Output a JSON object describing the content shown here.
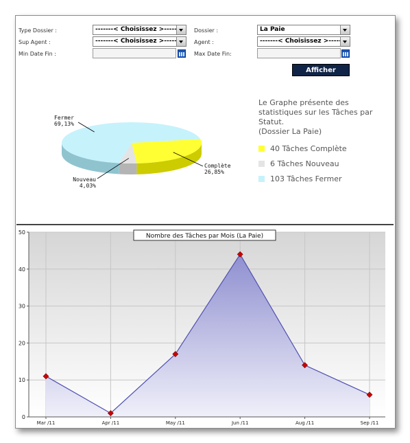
{
  "filters": {
    "type_dossier": {
      "label": "Type Dossier :",
      "value": "-------< Choisissez >-------"
    },
    "dossier": {
      "label": "Dossier :",
      "value": "La Paie"
    },
    "sup_agent": {
      "label": "Sup Agent :",
      "value": "-------< Choisissez >-------"
    },
    "agent": {
      "label": "Agent :",
      "value": "-------< Choisissez >-------"
    },
    "min_date": {
      "label": "Min Date Fin :",
      "value": ""
    },
    "max_date": {
      "label": "Max Date Fin:",
      "value": ""
    },
    "submit_label": "Afficher"
  },
  "pie_description": {
    "lines": [
      "Le Graphe présente des",
      "statistiques sur les Tâches par",
      "Statut.",
      "(Dossier La Paie)"
    ]
  },
  "colors": {
    "complete": "#ffff33",
    "nouveau": "#e4e4e4",
    "fermer": "#c6f2fc",
    "line": "#5050b0",
    "point": "#cc0000",
    "area_top": "#9b9bd4"
  },
  "chart_data": [
    {
      "type": "pie",
      "slices": [
        {
          "name": "Complète",
          "label": "Complète",
          "pct_label": "26,85%",
          "value": 40,
          "legend": "40 Tâches Complète"
        },
        {
          "name": "Nouveau",
          "label": "Nouveau",
          "pct_label": "4,03%",
          "value": 6,
          "legend": "6 Tâches Nouveau"
        },
        {
          "name": "Fermer",
          "label": "Fermer",
          "pct_label": "69,13%",
          "value": 103,
          "legend": "103 Tâches Fermer"
        }
      ]
    },
    {
      "type": "area",
      "title": "Nombre des Tâches par Mois   (La Paie)",
      "categories": [
        "Mar /11",
        "Apr /11",
        "May /11",
        "Jun /11",
        "Aug /11",
        "Sep /11"
      ],
      "values": [
        11,
        1,
        17,
        44,
        14,
        6
      ],
      "ylim": [
        0,
        50
      ],
      "yticks": [
        0,
        10,
        20,
        30,
        40,
        50
      ],
      "grid": true
    }
  ]
}
